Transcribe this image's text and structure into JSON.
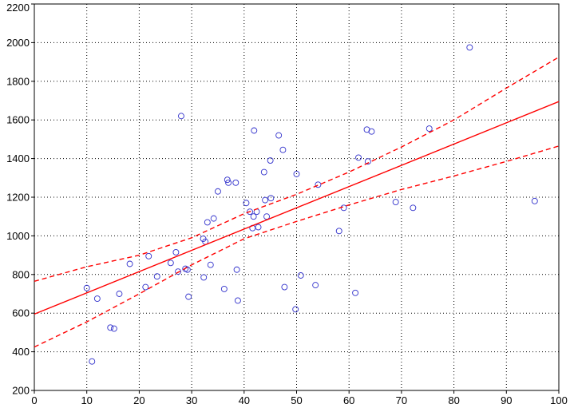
{
  "chart_data": {
    "type": "scatter",
    "title": "",
    "xlabel": "",
    "ylabel": "",
    "xlim": [
      0,
      100
    ],
    "ylim": [
      200,
      2200
    ],
    "x_ticks": [
      "0",
      "10",
      "20",
      "30",
      "40",
      "50",
      "60",
      "70",
      "80",
      "90",
      "100"
    ],
    "y_ticks": [
      "200",
      "400",
      "600",
      "800",
      "1000",
      "1200",
      "1400",
      "1600",
      "1800",
      "2000",
      "2200"
    ],
    "grid": true,
    "legend": "none",
    "point_color": "#3333cc",
    "fit_color": "#ff0000",
    "series": [
      {
        "type": "scatter",
        "points": [
          [
            10,
            730
          ],
          [
            11,
            350
          ],
          [
            12,
            675
          ],
          [
            14.5,
            525
          ],
          [
            15.2,
            520
          ],
          [
            16.2,
            700
          ],
          [
            18.2,
            855
          ],
          [
            21.2,
            735
          ],
          [
            21.8,
            895
          ],
          [
            23.4,
            790
          ],
          [
            26,
            860
          ],
          [
            27,
            915
          ],
          [
            27.4,
            815
          ],
          [
            28,
            1620
          ],
          [
            28.8,
            830
          ],
          [
            29.2,
            825
          ],
          [
            29.4,
            685
          ],
          [
            32.2,
            985
          ],
          [
            32.3,
            785
          ],
          [
            32.6,
            970
          ],
          [
            33,
            1070
          ],
          [
            33.6,
            850
          ],
          [
            34.2,
            1090
          ],
          [
            35,
            1230
          ],
          [
            36.2,
            725
          ],
          [
            36.8,
            1290
          ],
          [
            37,
            1275
          ],
          [
            38.4,
            1275
          ],
          [
            38.6,
            825
          ],
          [
            38.8,
            665
          ],
          [
            40.4,
            1170
          ],
          [
            41.1,
            1125
          ],
          [
            41.6,
            1040
          ],
          [
            41.8,
            1100
          ],
          [
            41.9,
            1545
          ],
          [
            42.4,
            1125
          ],
          [
            42.7,
            1045
          ],
          [
            43.8,
            1330
          ],
          [
            44,
            1185
          ],
          [
            44.3,
            1100
          ],
          [
            45,
            1390
          ],
          [
            45.1,
            1195
          ],
          [
            46.6,
            1520
          ],
          [
            47.4,
            1445
          ],
          [
            47.7,
            735
          ],
          [
            49.8,
            620
          ],
          [
            50,
            1320
          ],
          [
            50.8,
            795
          ],
          [
            53.6,
            745
          ],
          [
            54.1,
            1265
          ],
          [
            58.1,
            1025
          ],
          [
            59,
            1145
          ],
          [
            61.2,
            705
          ],
          [
            61.8,
            1405
          ],
          [
            63.4,
            1550
          ],
          [
            63.6,
            1385
          ],
          [
            64.3,
            1540
          ],
          [
            68.9,
            1175
          ],
          [
            72.2,
            1145
          ],
          [
            75.3,
            1555
          ],
          [
            83,
            1975
          ],
          [
            95.4,
            1180
          ]
        ]
      },
      {
        "type": "line",
        "points": [
          [
            0,
            595
          ],
          [
            100,
            1695
          ]
        ]
      },
      {
        "type": "line",
        "style": "dashed",
        "points": [
          [
            0,
            425
          ],
          [
            10,
            555
          ],
          [
            20,
            700
          ],
          [
            30,
            850
          ],
          [
            40,
            985
          ],
          [
            50,
            1075
          ],
          [
            60,
            1160
          ],
          [
            70,
            1240
          ],
          [
            80,
            1310
          ],
          [
            90,
            1385
          ],
          [
            100,
            1465
          ]
        ]
      },
      {
        "type": "line",
        "style": "dashed",
        "points": [
          [
            0,
            765
          ],
          [
            10,
            840
          ],
          [
            20,
            900
          ],
          [
            30,
            990
          ],
          [
            40,
            1115
          ],
          [
            50,
            1215
          ],
          [
            60,
            1330
          ],
          [
            70,
            1460
          ],
          [
            80,
            1600
          ],
          [
            90,
            1765
          ],
          [
            100,
            1925
          ]
        ]
      }
    ]
  }
}
